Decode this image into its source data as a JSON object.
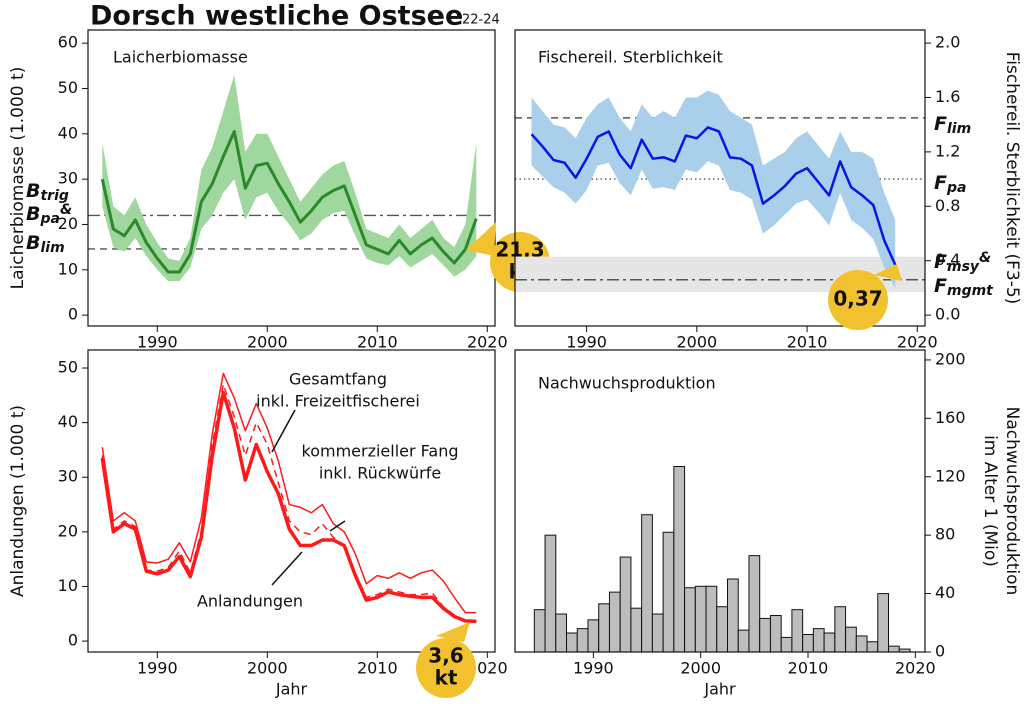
{
  "title": "Dorsch westliche Ostsee",
  "subtitle": "22-24",
  "chart_data": [
    {
      "type": "line",
      "title": "Laicherbiomasse",
      "ylabel": [
        "Laicherbiomasse (1.000 t)"
      ],
      "yaxis": "left",
      "x": [
        1985,
        1986,
        1987,
        1988,
        1989,
        1990,
        1991,
        1992,
        1993,
        1994,
        1995,
        1996,
        1997,
        1998,
        1999,
        2000,
        2001,
        2002,
        2003,
        2004,
        2005,
        2006,
        2007,
        2008,
        2009,
        2010,
        2011,
        2012,
        2013,
        2014,
        2015,
        2016,
        2017,
        2018,
        2019
      ],
      "series": [
        {
          "color": "#2a8a2a",
          "band_color": "#9fd79f",
          "width": 3,
          "values": [
            30,
            19,
            17.5,
            21,
            16,
            12.5,
            9.5,
            9.5,
            13.5,
            25,
            29,
            35,
            40.5,
            28,
            33,
            33.5,
            29,
            25,
            20.5,
            23,
            26,
            27.5,
            28.5,
            22,
            15.5,
            14.5,
            13.5,
            16.5,
            13.5,
            15.5,
            17,
            14,
            11.5,
            14.5,
            21.3
          ],
          "upper": [
            38,
            24,
            22,
            26,
            20,
            16,
            12.5,
            12,
            17,
            32,
            37,
            45,
            53,
            36,
            40,
            40,
            35,
            30,
            25,
            28,
            31,
            33,
            34,
            27,
            19,
            18,
            17,
            20,
            17,
            19,
            21,
            17,
            15,
            20,
            38
          ],
          "lower": [
            24,
            15,
            14,
            17,
            13,
            10,
            7.5,
            7.5,
            10.5,
            19,
            22,
            27,
            30,
            21,
            26,
            27,
            23,
            20,
            16.5,
            18,
            21,
            22.5,
            23,
            17.5,
            12.5,
            11.5,
            11,
            13,
            10.5,
            12,
            13.5,
            11,
            8.5,
            10,
            13
          ]
        }
      ],
      "xlim": [
        1983.7,
        2020.7
      ],
      "xticks": [
        1990,
        2000,
        2010,
        2020
      ],
      "ylim": [
        -2.4,
        62.9
      ],
      "yticks": [
        0,
        10,
        20,
        30,
        40,
        50,
        60
      ],
      "ref_lines": [
        {
          "value": 22,
          "dash": "dashdot",
          "labels": [
            {
              "main": "B",
              "sub": "trig"
            },
            {
              "main": "B",
              "sub": "pa",
              "suffix": "&"
            }
          ]
        },
        {
          "value": 14.6,
          "dash": "dashed",
          "labels": [
            {
              "main": "B",
              "sub": "lim"
            }
          ]
        }
      ],
      "callout": {
        "lines": [
          "21,3",
          "kt"
        ],
        "color": "#f2c12e"
      }
    },
    {
      "type": "line",
      "title": "Fischereil. Sterblichkeit",
      "ylabel": [
        "Fischereil. Sterblichkeit (F3-5)"
      ],
      "yaxis": "right",
      "x": [
        1985,
        1986,
        1987,
        1988,
        1989,
        1990,
        1991,
        1992,
        1993,
        1994,
        1995,
        1996,
        1997,
        1998,
        1999,
        2000,
        2001,
        2002,
        2003,
        2004,
        2005,
        2006,
        2007,
        2008,
        2009,
        2010,
        2011,
        2012,
        2013,
        2014,
        2015,
        2016,
        2017,
        2018
      ],
      "series": [
        {
          "color": "#0a14e6",
          "band_color": "#a9cfea",
          "width": 2.5,
          "values": [
            1.33,
            1.24,
            1.14,
            1.12,
            1.01,
            1.15,
            1.31,
            1.35,
            1.18,
            1.08,
            1.29,
            1.15,
            1.16,
            1.13,
            1.32,
            1.3,
            1.38,
            1.35,
            1.16,
            1.15,
            1.1,
            0.82,
            0.88,
            0.95,
            1.04,
            1.08,
            0.98,
            0.88,
            1.13,
            0.94,
            0.88,
            0.81,
            0.55,
            0.37
          ],
          "upper": [
            1.6,
            1.5,
            1.4,
            1.38,
            1.3,
            1.45,
            1.55,
            1.6,
            1.45,
            1.35,
            1.55,
            1.45,
            1.5,
            1.45,
            1.6,
            1.6,
            1.65,
            1.62,
            1.5,
            1.45,
            1.4,
            1.1,
            1.15,
            1.2,
            1.3,
            1.35,
            1.25,
            1.15,
            1.35,
            1.2,
            1.2,
            1.15,
            0.9,
            0.7
          ],
          "lower": [
            1.1,
            1.02,
            0.94,
            0.9,
            0.82,
            0.92,
            1.1,
            1.12,
            0.97,
            0.88,
            1.07,
            0.93,
            0.94,
            0.92,
            1.07,
            1.05,
            1.13,
            1.1,
            0.92,
            0.9,
            0.85,
            0.6,
            0.66,
            0.74,
            0.82,
            0.85,
            0.76,
            0.66,
            0.9,
            0.7,
            0.64,
            0.56,
            0.35,
            0.2
          ]
        }
      ],
      "xlim": [
        1983.5,
        2020.7
      ],
      "xticks": [
        1990,
        2000,
        2010,
        2020
      ],
      "ylim": [
        -0.08,
        2.096
      ],
      "yticks": [
        {
          "value": 0,
          "label": "0.0"
        },
        {
          "value": 0.4,
          "label": "0.4"
        },
        {
          "value": 0.8,
          "label": "0.8"
        },
        {
          "value": 1.2,
          "label": "1.2"
        },
        {
          "value": 1.6,
          "label": "1.6"
        },
        {
          "value": 2,
          "label": "2.0"
        }
      ],
      "ref_band": [
        0.17,
        0.43
      ],
      "ref_lines": [
        {
          "value": 1.45,
          "dash": "dashed",
          "labels": [
            {
              "main": "F",
              "sub": "lim"
            }
          ]
        },
        {
          "value": 1.0,
          "dash": "dotted",
          "labels": [
            {
              "main": "F",
              "sub": "pa"
            }
          ]
        },
        {
          "value": 0.26,
          "dash": "dashdot",
          "labels": [
            {
              "main": "F",
              "sub": "msy",
              "suffix": "&"
            },
            {
              "main": "F",
              "sub": "mgmt"
            }
          ]
        }
      ],
      "callout": {
        "lines": [
          "0,37"
        ],
        "color": "#f2c12e"
      }
    },
    {
      "type": "line",
      "ylabel": [
        "Anlandungen (1.000 t)"
      ],
      "xlabel": "Jahr",
      "yaxis": "left",
      "x": [
        1985,
        1986,
        1987,
        1988,
        1989,
        1990,
        1991,
        1992,
        1993,
        1994,
        1995,
        1996,
        1997,
        1998,
        1999,
        2000,
        2001,
        2002,
        2003,
        2004,
        2005,
        2006,
        2007,
        2008,
        2009,
        2010,
        2011,
        2012,
        2013,
        2014,
        2015,
        2016,
        2017,
        2018,
        2019
      ],
      "series": [
        {
          "label_lines": [
            "Gesamtfang",
            "inkl. Freizeitfischerei"
          ],
          "color": "#ff1a1a",
          "width": 1.5,
          "dash": "solid",
          "values": [
            35.5,
            22,
            23.5,
            22,
            14.5,
            14.3,
            15,
            18,
            14.5,
            22.5,
            38,
            49,
            44.5,
            38.5,
            43.5,
            39,
            33,
            25,
            24.5,
            23.5,
            25,
            21.5,
            20,
            16,
            10.5,
            12,
            11.5,
            12.5,
            11.5,
            12.5,
            13,
            11,
            8,
            5.2,
            5.2
          ]
        },
        {
          "label_lines": [
            "kommerzieller Fang",
            "inkl. Rückwürfe"
          ],
          "color": "#ff1a1a",
          "width": 1.5,
          "dash": "dashed",
          "values": [
            34,
            20.5,
            22,
            21,
            13,
            12.8,
            13.5,
            16.5,
            12.5,
            20,
            36,
            47,
            41,
            34,
            40,
            36,
            29,
            22,
            20,
            19.5,
            21.5,
            19,
            17.5,
            12.5,
            8,
            8.5,
            9.5,
            9,
            8.5,
            8.5,
            8.8,
            6.3,
            4.8,
            3.8,
            3.7
          ]
        },
        {
          "label_lines": [
            "Anlandungen"
          ],
          "color": "#ff1a1a",
          "width": 3.5,
          "dash": "solid",
          "values": [
            33.5,
            20,
            21.5,
            20.5,
            12.8,
            12.3,
            13,
            15.5,
            11.8,
            19,
            34,
            45.5,
            39,
            29.5,
            36,
            31,
            27,
            20.5,
            17.5,
            17.5,
            18.5,
            18.5,
            17.5,
            12,
            7.5,
            8,
            9,
            8.5,
            8.2,
            8,
            8,
            6,
            4.5,
            3.7,
            3.6
          ]
        }
      ],
      "xlim": [
        1983.7,
        2020.7
      ],
      "xticks": [
        1990,
        2000,
        2010,
        2020
      ],
      "ylim": [
        -2,
        53.3
      ],
      "yticks": [
        0,
        10,
        20,
        30,
        40,
        50
      ],
      "callout": {
        "lines": [
          "3,6",
          "kt"
        ],
        "color": "#f2c12e"
      }
    },
    {
      "type": "bar",
      "title": "Nachwuchsproduktion",
      "ylabel": [
        "Nachwuchsproduktion",
        "im Alter 1 (Mio)"
      ],
      "xlabel": "Jahr",
      "yaxis": "right",
      "color": "#bdbdbd",
      "x": [
        1985,
        1986,
        1987,
        1988,
        1989,
        1990,
        1991,
        1992,
        1993,
        1994,
        1995,
        1996,
        1997,
        1998,
        1999,
        2000,
        2001,
        2002,
        2003,
        2004,
        2005,
        2006,
        2007,
        2008,
        2009,
        2010,
        2011,
        2012,
        2013,
        2014,
        2015,
        2016,
        2017,
        2018,
        2019
      ],
      "values": [
        29,
        80,
        26,
        13,
        16,
        22,
        33,
        41,
        65,
        30,
        94,
        26,
        82,
        127,
        44,
        45,
        45,
        31,
        50,
        15,
        66,
        23,
        25,
        10,
        29,
        12,
        16,
        13,
        31,
        17,
        11,
        7,
        40,
        4,
        2
      ],
      "xlim": [
        1982.7,
        2020.9
      ],
      "xticks": [
        1990,
        2000,
        2010,
        2020
      ],
      "ylim": [
        0,
        206.8
      ],
      "yticks": [
        0,
        40,
        80,
        120,
        160,
        200
      ]
    }
  ]
}
